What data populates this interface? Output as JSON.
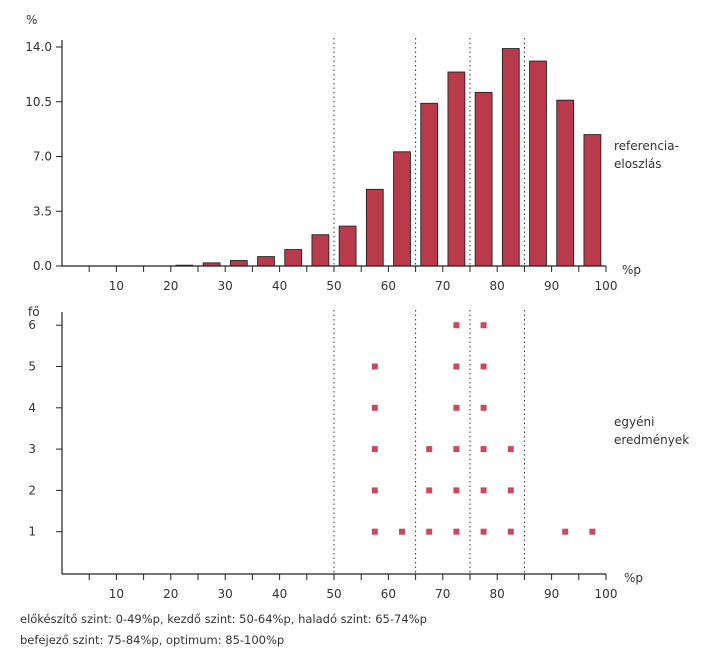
{
  "chart_data": [
    {
      "type": "bar",
      "y_unit": "%",
      "x_unit": "%p",
      "side_label": [
        "referencia-",
        "eloszlás"
      ],
      "x": [
        2.5,
        7.5,
        12.5,
        17.5,
        22.5,
        27.5,
        32.5,
        37.5,
        42.5,
        47.5,
        52.5,
        57.5,
        62.5,
        67.5,
        72.5,
        77.5,
        82.5,
        87.5,
        92.5,
        97.5
      ],
      "values": [
        0,
        0,
        0,
        0,
        0.05,
        0.2,
        0.35,
        0.6,
        1.05,
        2.0,
        2.55,
        4.9,
        7.3,
        10.4,
        12.4,
        11.1,
        13.9,
        13.1,
        10.6,
        8.4
      ],
      "xlim": [
        0,
        100
      ],
      "ylim": [
        0,
        14.0
      ],
      "x_ticks": [
        10,
        20,
        30,
        40,
        50,
        60,
        70,
        80,
        90,
        100
      ],
      "y_ticks": [
        "0.0",
        "3.5",
        "7.0",
        "10.5",
        "14.0"
      ],
      "y_tick_values": [
        0,
        3.5,
        7.0,
        10.5,
        14.0
      ],
      "bar_color": "#b83a4b",
      "vertical_guides": [
        50,
        65,
        75,
        85
      ]
    },
    {
      "type": "scatter",
      "y_unit": "fő",
      "x_unit": "%p",
      "side_label": [
        "egyéni",
        "eredmények"
      ],
      "points": [
        {
          "x": 57.5,
          "y": 1
        },
        {
          "x": 57.5,
          "y": 2
        },
        {
          "x": 57.5,
          "y": 3
        },
        {
          "x": 57.5,
          "y": 4
        },
        {
          "x": 57.5,
          "y": 5
        },
        {
          "x": 62.5,
          "y": 1
        },
        {
          "x": 67.5,
          "y": 1
        },
        {
          "x": 67.5,
          "y": 2
        },
        {
          "x": 67.5,
          "y": 3
        },
        {
          "x": 72.5,
          "y": 1
        },
        {
          "x": 72.5,
          "y": 2
        },
        {
          "x": 72.5,
          "y": 3
        },
        {
          "x": 72.5,
          "y": 4
        },
        {
          "x": 72.5,
          "y": 5
        },
        {
          "x": 72.5,
          "y": 6
        },
        {
          "x": 77.5,
          "y": 1
        },
        {
          "x": 77.5,
          "y": 2
        },
        {
          "x": 77.5,
          "y": 3
        },
        {
          "x": 77.5,
          "y": 4
        },
        {
          "x": 77.5,
          "y": 5
        },
        {
          "x": 77.5,
          "y": 6
        },
        {
          "x": 82.5,
          "y": 1
        },
        {
          "x": 82.5,
          "y": 2
        },
        {
          "x": 82.5,
          "y": 3
        },
        {
          "x": 92.5,
          "y": 1
        },
        {
          "x": 97.5,
          "y": 1
        }
      ],
      "xlim": [
        0,
        100
      ],
      "ylim": [
        0,
        6
      ],
      "x_ticks": [
        10,
        20,
        30,
        40,
        50,
        60,
        70,
        80,
        90,
        100
      ],
      "y_ticks": [
        1,
        2,
        3,
        4,
        5,
        6
      ],
      "point_color": "#c94a5c",
      "vertical_guides": [
        50,
        65,
        75,
        85
      ]
    }
  ],
  "footer": {
    "line1": "előkészítő szint: 0-49%p, kezdő szint: 50-64%p, haladó szint: 65-74%p",
    "line2": "befejező szint: 75-84%p, optimum: 85-100%p"
  }
}
